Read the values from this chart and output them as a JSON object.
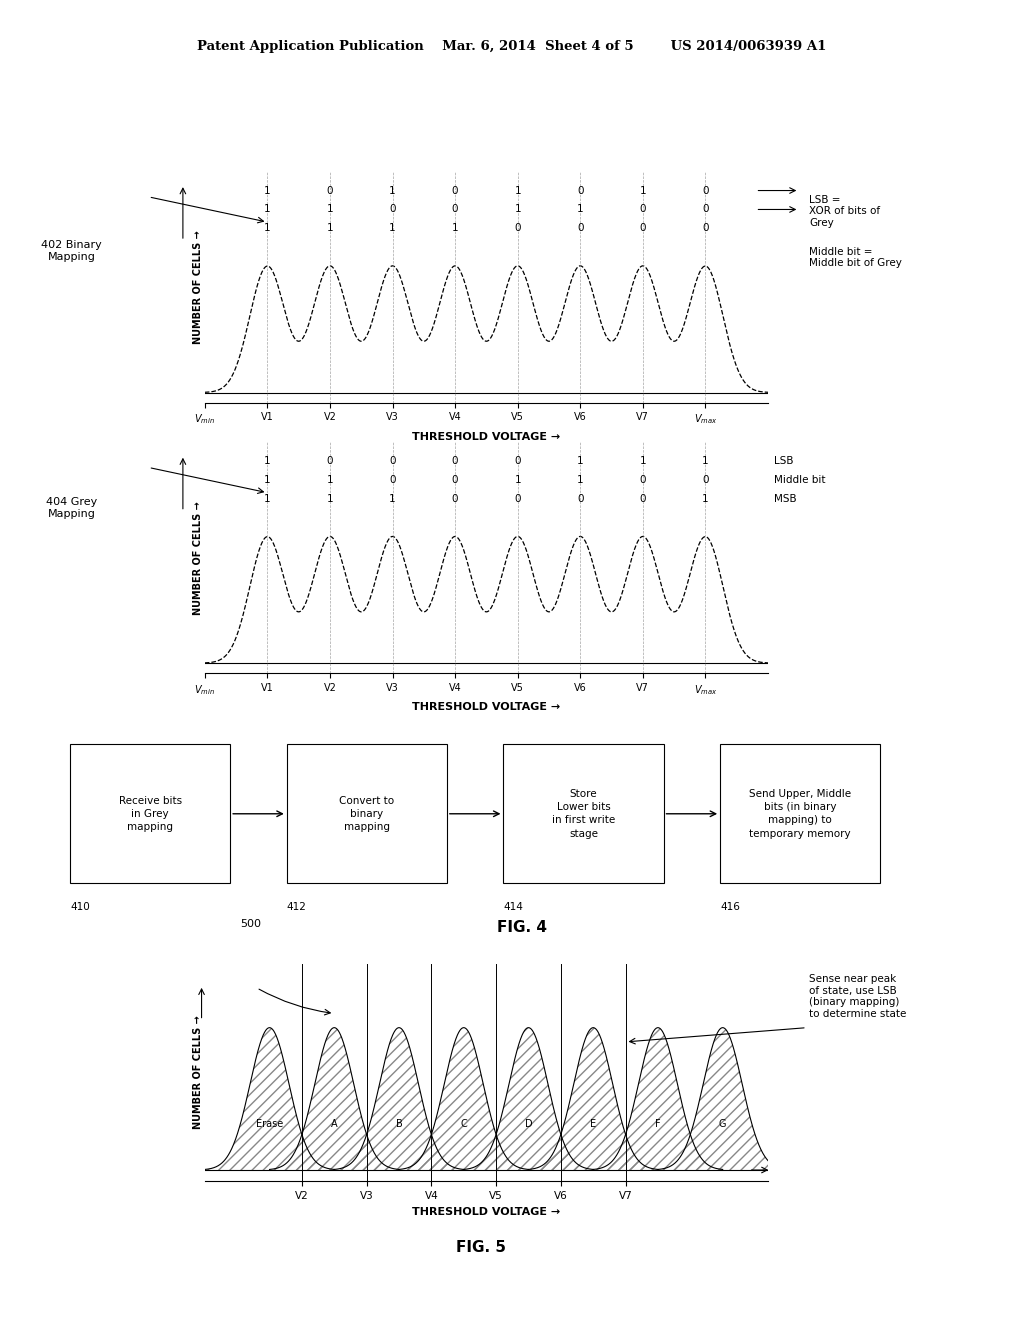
{
  "background_color": "#ffffff",
  "header_text": "Patent Application Publication    Mar. 6, 2014  Sheet 4 of 5        US 2014/0063939 A1",
  "fig1": {
    "label": "402 Binary\nMapping",
    "row1": [
      "1",
      "0",
      "1",
      "0",
      "1",
      "0",
      "1",
      "0"
    ],
    "row2": [
      "1",
      "1",
      "0",
      "0",
      "1",
      "1",
      "0",
      "0"
    ],
    "row3": [
      "1",
      "1",
      "1",
      "1",
      "0",
      "0",
      "0",
      "0"
    ],
    "xticks": [
      "V_min",
      "V1",
      "V2",
      "V3",
      "V4",
      "V5",
      "V6",
      "V7",
      "V_max"
    ],
    "xlabel": "THRESHOLD VOLTAGE →",
    "ylabel": "NUMBER OF CELLS →",
    "note1": "LSB =\nXOR of bits of\nGrey",
    "note2": "Middle bit =\nMiddle bit of Grey",
    "num_peaks": 8
  },
  "fig2": {
    "label": "404 Grey\nMapping",
    "row1": [
      "1",
      "0",
      "0",
      "0",
      "0",
      "1",
      "1",
      "1"
    ],
    "row2": [
      "1",
      "1",
      "0",
      "0",
      "1",
      "1",
      "0",
      "0"
    ],
    "row3": [
      "1",
      "1",
      "1",
      "0",
      "0",
      "0",
      "0",
      "1"
    ],
    "row_labels": [
      "LSB",
      "Middle bit",
      "MSB"
    ],
    "xticks": [
      "V_min",
      "V1",
      "V2",
      "V3",
      "V4",
      "V5",
      "V6",
      "V7",
      "V_max"
    ],
    "xlabel": "THRESHOLD VOLTAGE →",
    "ylabel": "NUMBER OF CELLS →",
    "num_peaks": 8
  },
  "flowchart": {
    "boxes": [
      {
        "label": "Receive bits\nin Grey\nmapping",
        "num": "410"
      },
      {
        "label": "Convert to\nbinary\nmapping",
        "num": "412"
      },
      {
        "label": "Store\nLower bits\nin first write\nstage",
        "num": "414"
      },
      {
        "label": "Send Upper, Middle\nbits (in binary\nmapping) to\ntemporary memory",
        "num": "416"
      }
    ],
    "fig_label": "FIG. 4"
  },
  "fig5": {
    "label": "500",
    "states": [
      "Erase",
      "A",
      "B",
      "C",
      "D",
      "E",
      "F",
      "G"
    ],
    "xtick_positions": [
      1,
      2,
      3,
      4,
      5,
      6
    ],
    "xtick_labels": [
      "V2",
      "V3",
      "V4",
      "V5",
      "V6",
      "V7"
    ],
    "xlabel": "THRESHOLD VOLTAGE →",
    "ylabel": "NUMBER OF CELLS →",
    "note": "Sense near peak\nof state, use LSB\n(binary mapping)\nto determine state",
    "fig_label": "FIG. 5"
  }
}
